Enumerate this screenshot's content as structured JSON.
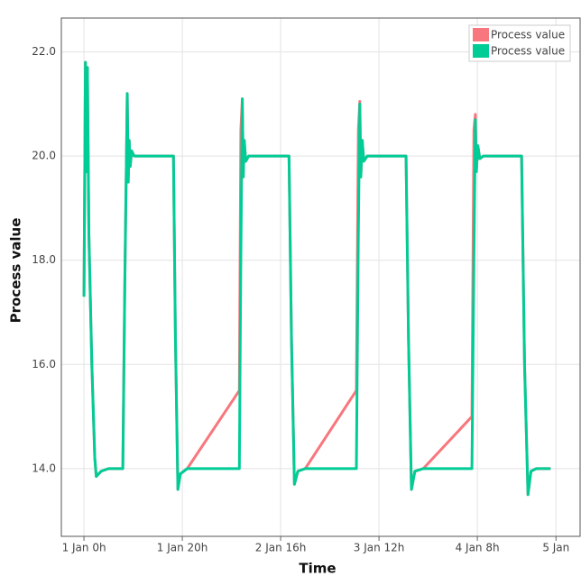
{
  "chart_data": {
    "type": "line",
    "xlabel": "Time",
    "ylabel": "Process value",
    "x": [
      0,
      0.3,
      0.5,
      0.7,
      1.0,
      1.6,
      2.2,
      2.5,
      3.5,
      5,
      7.9,
      8.3,
      8.8,
      9.0,
      9.2,
      9.4,
      9.7,
      10.2,
      18.2,
      18.6,
      19.1,
      19.6,
      21,
      31.6,
      31.9,
      32.2,
      32.4,
      32.6,
      32.9,
      33.5,
      41.7,
      42.2,
      42.8,
      43.5,
      45,
      55.4,
      55.8,
      56.1,
      56.3,
      56.6,
      56.9,
      57.6,
      65.5,
      66,
      66.6,
      67.3,
      69,
      78.9,
      79.3,
      79.6,
      79.8,
      80.1,
      80.5,
      81.2,
      89,
      89.6,
      90.3,
      90.9,
      92,
      94.9
    ],
    "series": [
      {
        "name": "Process value",
        "color": "#f8767d",
        "values": [
          17.3,
          21.8,
          19.7,
          21.7,
          18.5,
          16,
          14.2,
          13.85,
          13.95,
          14,
          14,
          17.5,
          21.2,
          19.5,
          20.3,
          19.8,
          20.1,
          20,
          20,
          16.5,
          13.6,
          13.9,
          14,
          15.5,
          20.5,
          21.1,
          19.6,
          20.3,
          19.9,
          20,
          20,
          16.5,
          13.7,
          13.95,
          14,
          15.5,
          20.5,
          21.05,
          19.6,
          20.3,
          19.9,
          20,
          20,
          16.5,
          13.6,
          13.95,
          14,
          15,
          20.5,
          20.8,
          19.7,
          20.2,
          19.95,
          20,
          20,
          16,
          13.5,
          13.95,
          14,
          14
        ]
      },
      {
        "name": "Process value",
        "color": "#00cc96",
        "values": [
          17.3,
          21.8,
          19.7,
          21.7,
          18.5,
          16,
          14.2,
          13.85,
          13.95,
          14,
          14,
          17.5,
          21.2,
          19.5,
          20.3,
          19.8,
          20.1,
          20,
          20,
          16.5,
          13.6,
          13.9,
          14,
          14,
          18,
          21.1,
          19.6,
          20.3,
          19.9,
          20,
          20,
          16.5,
          13.7,
          13.95,
          14,
          14,
          18.5,
          21,
          19.6,
          20.3,
          19.9,
          20,
          20,
          16.5,
          13.6,
          13.95,
          14,
          14,
          18,
          20.7,
          19.7,
          20.2,
          19.95,
          20,
          20,
          16,
          13.5,
          13.95,
          14,
          14
        ]
      }
    ],
    "xlim": [
      -4.6,
      100.9
    ],
    "xticks": [
      {
        "value": 0,
        "label": "1 Jan 0h"
      },
      {
        "value": 20,
        "label": "1 Jan 20h"
      },
      {
        "value": 40,
        "label": "2 Jan 16h"
      },
      {
        "value": 60,
        "label": "3 Jan 12h"
      },
      {
        "value": 80,
        "label": "4 Jan 8h"
      },
      {
        "value": 96,
        "label": "5 Jan"
      }
    ],
    "ylim": [
      12.7,
      22.65
    ],
    "yticks": [
      {
        "value": 14,
        "label": "14.0"
      },
      {
        "value": 16,
        "label": "16.0"
      },
      {
        "value": 18,
        "label": "18.0"
      },
      {
        "value": 20,
        "label": "20.0"
      },
      {
        "value": 22,
        "label": "22.0"
      }
    ],
    "grid": true,
    "legend": "upper-right"
  }
}
